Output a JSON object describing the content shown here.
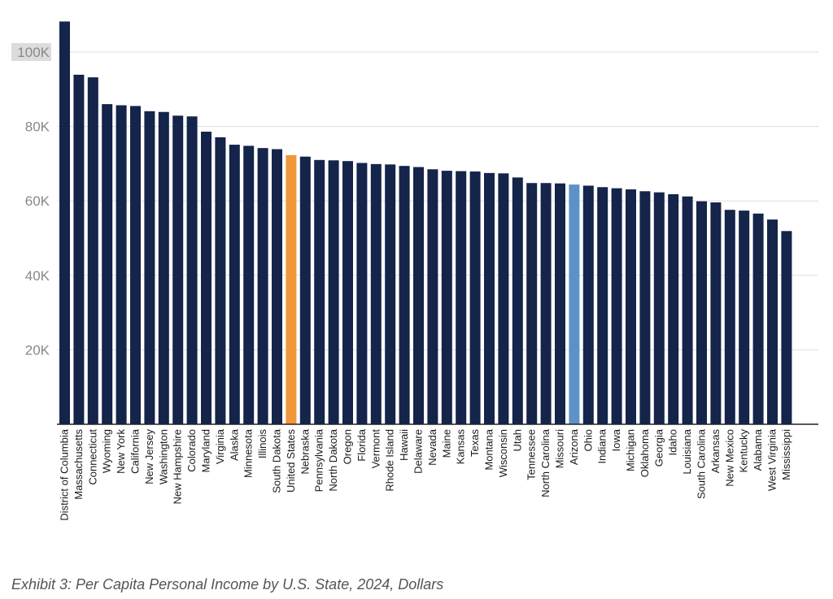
{
  "caption": "Exhibit 3: Per Capita Personal Income by U.S. State, 2024, Dollars",
  "colors": {
    "default": "#14244a",
    "united_states": "#f0973a",
    "arizona": "#5b93c7",
    "highlight_tick_bg": "#dcdcdc"
  },
  "chart_data": {
    "type": "bar",
    "title": "",
    "xlabel": "",
    "ylabel": "",
    "ylim": [
      0,
      110000
    ],
    "yticks": [
      20000,
      40000,
      60000,
      80000,
      100000
    ],
    "ytick_labels": [
      "20K",
      "40K",
      "60K",
      "80K",
      "100K"
    ],
    "grid": true,
    "categories": [
      "District of Columbia",
      "Massachusetts",
      "Connecticut",
      "Wyoming",
      "New York",
      "California",
      "New Jersey",
      "Washington",
      "New Hampshire",
      "Colorado",
      "Maryland",
      "Virginia",
      "Alaska",
      "Minnesota",
      "Illinois",
      "South Dakota",
      "United States",
      "Nebraska",
      "Pennsylvania",
      "North Dakota",
      "Oregon",
      "Florida",
      "Vermont",
      "Rhode Island",
      "Hawaii",
      "Delaware",
      "Nevada",
      "Maine",
      "Kansas",
      "Texas",
      "Montana",
      "Wisconsin",
      "Utah",
      "Tennessee",
      "North Carolina",
      "Missouri",
      "Arizona",
      "Ohio",
      "Indiana",
      "Iowa",
      "Michigan",
      "Oklahoma",
      "Georgia",
      "Idaho",
      "Louisiana",
      "South Carolina",
      "Arkansas",
      "New Mexico",
      "Kentucky",
      "Alabama",
      "West Virginia",
      "Mississippi"
    ],
    "values": [
      108200,
      93900,
      93200,
      86000,
      85700,
      85500,
      84100,
      83900,
      82900,
      82700,
      78600,
      77100,
      75100,
      74800,
      74200,
      73900,
      72300,
      71900,
      71000,
      70900,
      70700,
      70200,
      69900,
      69800,
      69400,
      69100,
      68500,
      68100,
      68000,
      67900,
      67500,
      67400,
      66300,
      64800,
      64800,
      64700,
      64400,
      64100,
      63700,
      63400,
      63100,
      62600,
      62300,
      61800,
      61200,
      59900,
      59600,
      57600,
      57400,
      56600,
      55000,
      51900
    ],
    "highlights": {
      "United States": "united_states",
      "Arizona": "arizona"
    }
  }
}
